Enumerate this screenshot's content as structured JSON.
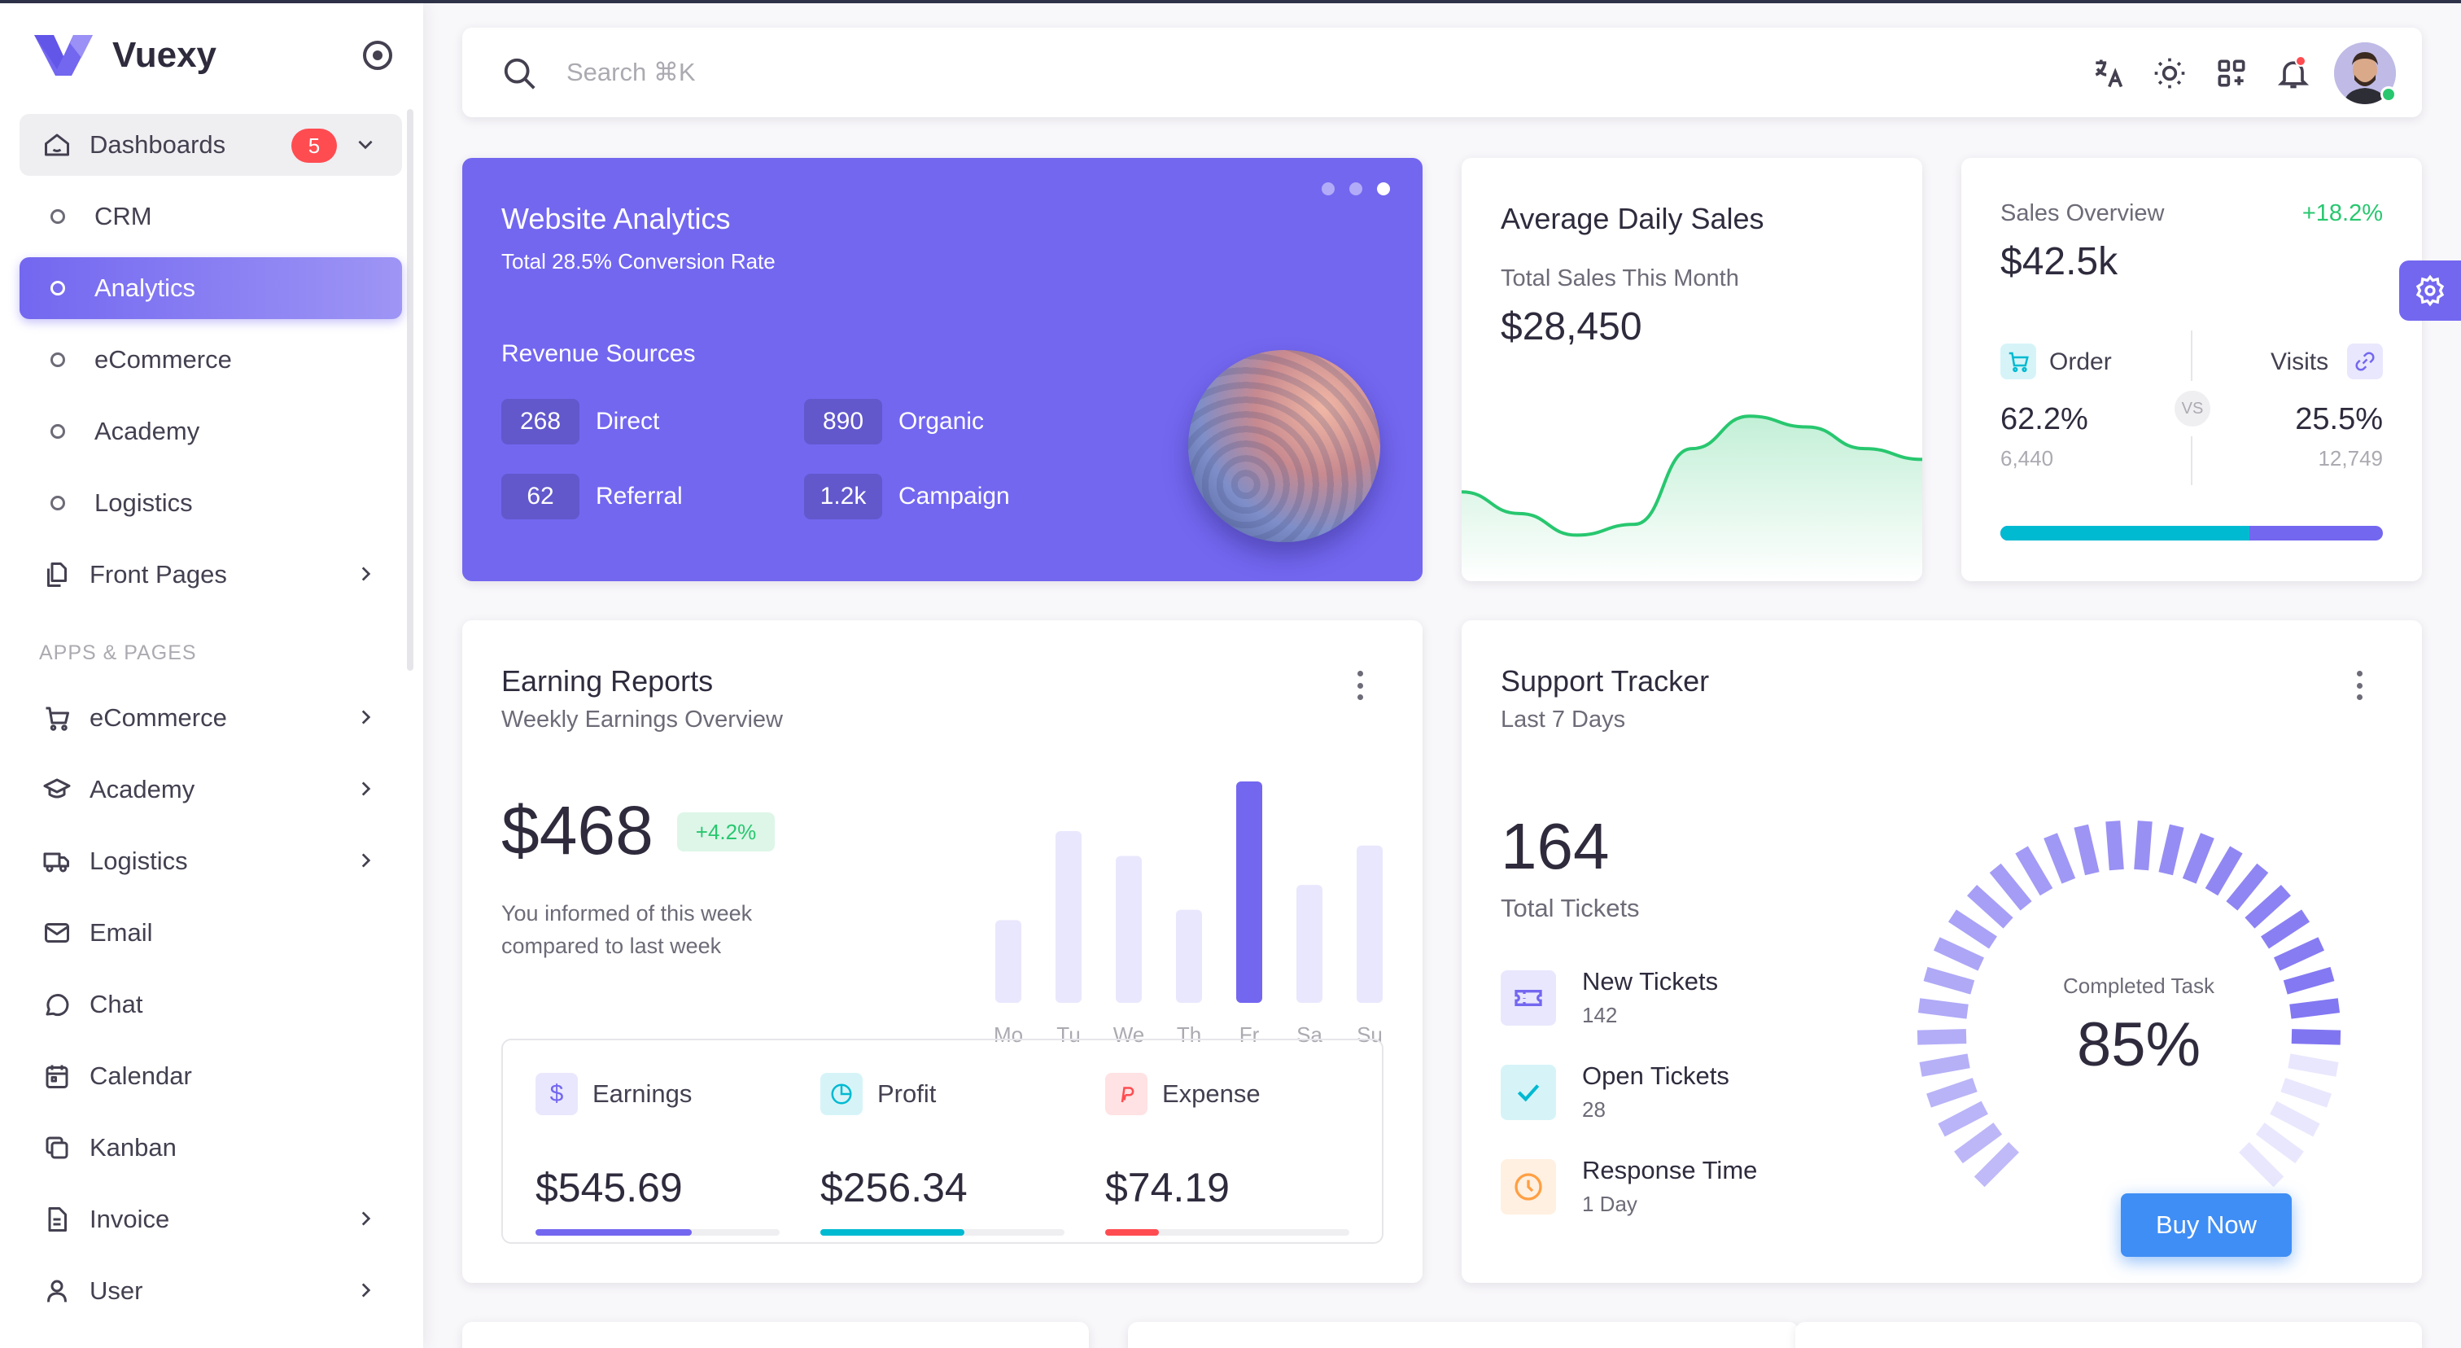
{
  "brand": {
    "name": "Vuexy"
  },
  "sidebar": {
    "dashboards": {
      "label": "Dashboards",
      "badge": "5"
    },
    "sub_items": [
      {
        "label": "CRM"
      },
      {
        "label": "Analytics"
      },
      {
        "label": "eCommerce"
      },
      {
        "label": "Academy"
      },
      {
        "label": "Logistics"
      }
    ],
    "front_pages": {
      "label": "Front Pages"
    },
    "section_title": "APPS & PAGES",
    "apps": [
      {
        "label": "eCommerce",
        "icon": "cart-icon",
        "chevron": true
      },
      {
        "label": "Academy",
        "icon": "graduation-cap-icon",
        "chevron": true
      },
      {
        "label": "Logistics",
        "icon": "truck-icon",
        "chevron": true
      },
      {
        "label": "Email",
        "icon": "mail-icon",
        "chevron": false
      },
      {
        "label": "Chat",
        "icon": "chat-icon",
        "chevron": false
      },
      {
        "label": "Calendar",
        "icon": "calendar-icon",
        "chevron": false
      },
      {
        "label": "Kanban",
        "icon": "kanban-icon",
        "chevron": false
      },
      {
        "label": "Invoice",
        "icon": "invoice-icon",
        "chevron": true
      },
      {
        "label": "User",
        "icon": "user-icon",
        "chevron": true
      }
    ]
  },
  "header": {
    "search_placeholder": "Search ⌘K"
  },
  "website_analytics": {
    "title": "Website Analytics",
    "subtitle": "Total 28.5% Conversion Rate",
    "revenue_title": "Revenue Sources",
    "sources": [
      {
        "value": "268",
        "label": "Direct"
      },
      {
        "value": "890",
        "label": "Organic"
      },
      {
        "value": "62",
        "label": "Referral"
      },
      {
        "value": "1.2k",
        "label": "Campaign"
      }
    ]
  },
  "average_daily_sales": {
    "title": "Average Daily Sales",
    "subtitle": "Total Sales This Month",
    "value": "$28,450"
  },
  "sales_overview": {
    "label": "Sales Overview",
    "change": "+18.2%",
    "value": "$42.5k",
    "order": {
      "label": "Order",
      "percent": "62.2%",
      "count": "6,440"
    },
    "visits": {
      "label": "Visits",
      "percent": "25.5%",
      "count": "12,749"
    },
    "vs": "VS",
    "order_share": 0.65
  },
  "earning_reports": {
    "title": "Earning Reports",
    "subtitle": "Weekly Earnings Overview",
    "amount": "$468",
    "change": "+4.2%",
    "note": "You informed of this week compared to last week",
    "stats": [
      {
        "label": "Earnings",
        "value": "$545.69",
        "progress": 0.64,
        "color": "#7367f0",
        "icon": "dollar-icon"
      },
      {
        "label": "Profit",
        "value": "$256.34",
        "progress": 0.59,
        "color": "#00bad1",
        "icon": "pie-chart-icon"
      },
      {
        "label": "Expense",
        "value": "$74.19",
        "progress": 0.22,
        "color": "#ff4c51",
        "icon": "brand-paypal-icon"
      }
    ]
  },
  "support_tracker": {
    "title": "Support Tracker",
    "subtitle": "Last 7 Days",
    "total": "164",
    "total_label": "Total Tickets",
    "rows": [
      {
        "name": "New Tickets",
        "count": "142",
        "icon": "ticket-icon"
      },
      {
        "name": "Open Tickets",
        "count": "28",
        "icon": "check-icon"
      },
      {
        "name": "Response Time",
        "count": "1 Day",
        "icon": "clock-icon"
      }
    ],
    "gauge_label": "Completed Task",
    "gauge_value": "85%",
    "gauge_fraction": 0.85,
    "buy_now": "Buy Now"
  },
  "chart_data": [
    {
      "type": "bar",
      "categories": [
        "Mo",
        "Tu",
        "We",
        "Th",
        "Fr",
        "Sa",
        "Su"
      ],
      "values": [
        40,
        83,
        71,
        45,
        107,
        57,
        76
      ],
      "highlight_index": 4,
      "colors": {
        "bar": "#e9e7fd",
        "highlight": "#7367f0"
      }
    },
    {
      "type": "line",
      "x": [
        0,
        1,
        2,
        3,
        4,
        5,
        6,
        7,
        8
      ],
      "values": [
        12,
        8,
        4,
        6,
        20,
        26,
        24,
        20,
        18
      ],
      "color": "#28c76f"
    }
  ]
}
